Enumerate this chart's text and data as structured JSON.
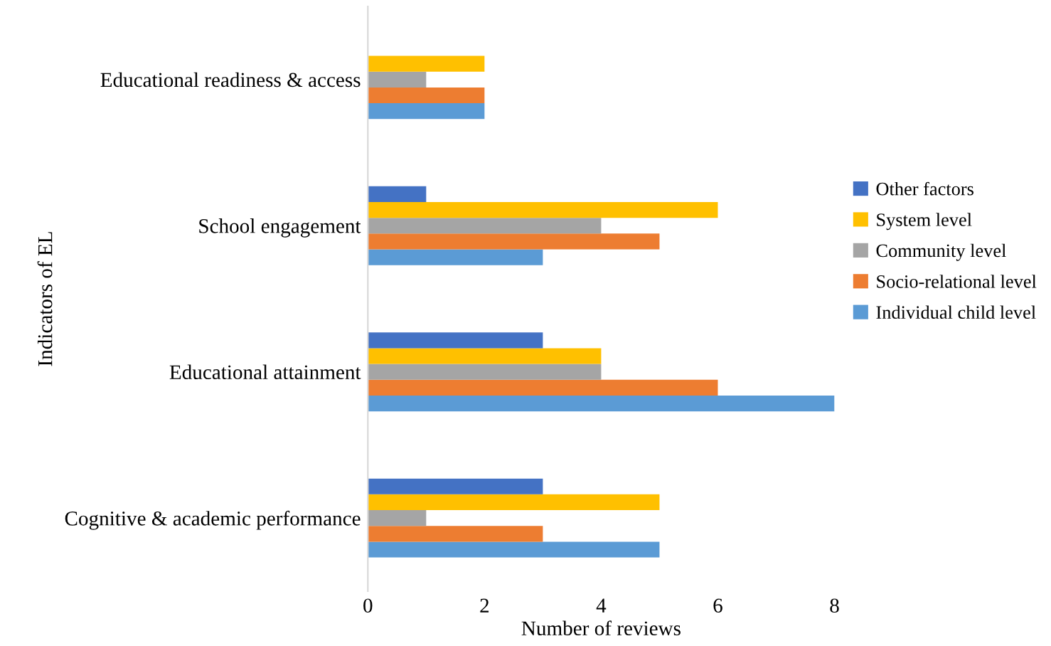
{
  "chart_data": {
    "type": "bar",
    "orientation": "horizontal",
    "xlabel": "Number of reviews",
    "ylabel": "Indicators of EL",
    "categories": [
      "Educational readiness & access",
      "School engagement",
      "Educational attainment",
      "Cognitive & academic performance"
    ],
    "series": [
      {
        "name": "Individual child level",
        "color": "#5b9bd5",
        "values": [
          2,
          3,
          8,
          5
        ]
      },
      {
        "name": "Socio-relational level",
        "color": "#ed7d31",
        "values": [
          2,
          5,
          6,
          3
        ]
      },
      {
        "name": "Community level",
        "color": "#a5a5a5",
        "values": [
          1,
          4,
          4,
          1
        ]
      },
      {
        "name": "System level",
        "color": "#ffc000",
        "values": [
          2,
          6,
          4,
          5
        ]
      },
      {
        "name": "Other factors",
        "color": "#4472c4",
        "values": [
          null,
          1,
          3,
          3
        ]
      }
    ],
    "xlim": [
      0,
      8
    ],
    "xticks": [
      0,
      2,
      4,
      6,
      8
    ],
    "grid": false,
    "legend": "right"
  }
}
